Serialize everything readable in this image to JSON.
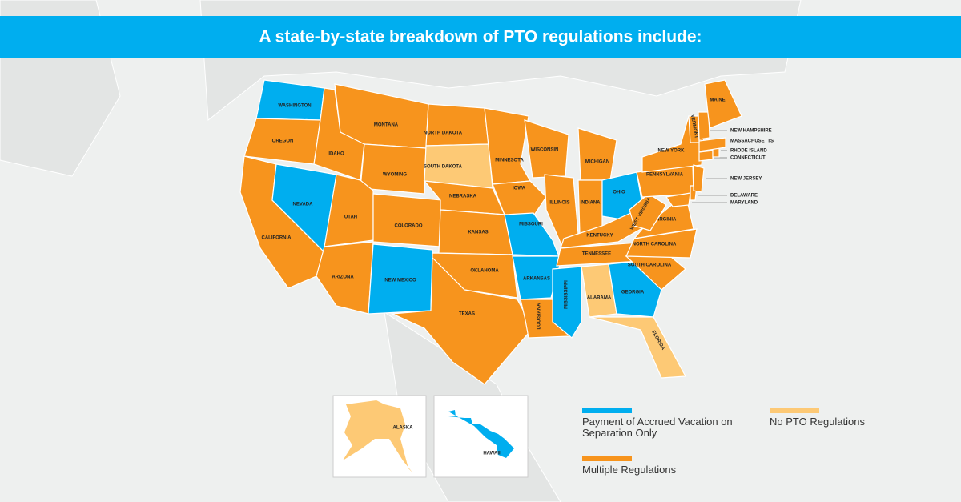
{
  "title": "A state-by-state breakdown of PTO regulations include:",
  "legend": [
    {
      "label": "Payment of Accrued Vacation on Separation Only",
      "color": "#00aeef"
    },
    {
      "label": "No PTO Regulations",
      "color": "#fdc975"
    },
    {
      "label": "Multiple Regulations",
      "color": "#f7941d"
    }
  ],
  "states": [
    {
      "name": "WASHINGTON",
      "category": 0
    },
    {
      "name": "OREGON",
      "category": 2
    },
    {
      "name": "CALIFORNIA",
      "category": 2
    },
    {
      "name": "NEVADA",
      "category": 0
    },
    {
      "name": "IDAHO",
      "category": 2
    },
    {
      "name": "MONTANA",
      "category": 2
    },
    {
      "name": "WYOMING",
      "category": 2
    },
    {
      "name": "UTAH",
      "category": 2
    },
    {
      "name": "ARIZONA",
      "category": 2
    },
    {
      "name": "COLORADO",
      "category": 2
    },
    {
      "name": "NEW MEXICO",
      "category": 0
    },
    {
      "name": "NORTH DAKOTA",
      "category": 2
    },
    {
      "name": "SOUTH DAKOTA",
      "category": 1
    },
    {
      "name": "NEBRASKA",
      "category": 2
    },
    {
      "name": "KANSAS",
      "category": 2
    },
    {
      "name": "OKLAHOMA",
      "category": 2
    },
    {
      "name": "TEXAS",
      "category": 2
    },
    {
      "name": "MINNESOTA",
      "category": 2
    },
    {
      "name": "IOWA",
      "category": 2
    },
    {
      "name": "MISSOURI",
      "category": 0
    },
    {
      "name": "ARKANSAS",
      "category": 0
    },
    {
      "name": "LOUISIANA",
      "category": 2
    },
    {
      "name": "WISCONSIN",
      "category": 2
    },
    {
      "name": "ILLINOIS",
      "category": 2
    },
    {
      "name": "MICHIGAN",
      "category": 2
    },
    {
      "name": "INDIANA",
      "category": 2
    },
    {
      "name": "OHIO",
      "category": 0
    },
    {
      "name": "KENTUCKY",
      "category": 2
    },
    {
      "name": "TENNESSEE",
      "category": 2
    },
    {
      "name": "MISSISSIPPI",
      "category": 0
    },
    {
      "name": "ALABAMA",
      "category": 1
    },
    {
      "name": "GEORGIA",
      "category": 0
    },
    {
      "name": "FLORIDA",
      "category": 1
    },
    {
      "name": "SOUTH CAROLINA",
      "category": 2
    },
    {
      "name": "NORTH CAROLINA",
      "category": 2
    },
    {
      "name": "VIRGINIA",
      "category": 2
    },
    {
      "name": "WEST VIRGINIA",
      "category": 2
    },
    {
      "name": "PENNSYLVANIA",
      "category": 2
    },
    {
      "name": "NEW YORK",
      "category": 2
    },
    {
      "name": "MARYLAND",
      "category": 2
    },
    {
      "name": "DELAWARE",
      "category": 2
    },
    {
      "name": "NEW JERSEY",
      "category": 2
    },
    {
      "name": "CONNECTICUT",
      "category": 2
    },
    {
      "name": "RHODE ISLAND",
      "category": 2
    },
    {
      "name": "MASSACHUSETTS",
      "category": 2
    },
    {
      "name": "VERMONT",
      "category": 2
    },
    {
      "name": "NEW HAMPSHIRE",
      "category": 2
    },
    {
      "name": "MAINE",
      "category": 2
    }
  ],
  "insets": [
    {
      "name": "ALASKA",
      "category": 1
    },
    {
      "name": "HAWAII",
      "category": 0
    }
  ]
}
